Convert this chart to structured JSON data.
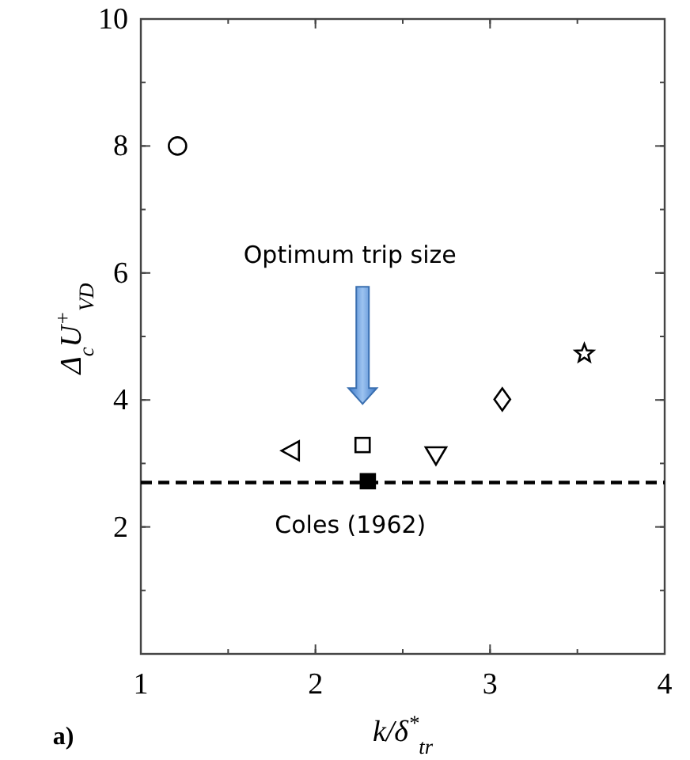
{
  "chart_data": {
    "type": "scatter",
    "xlabel": "k/δ$^{*}$$_{tr}$",
    "ylabel": "Δ$_{c}$U$^{+}$$_{VD}$",
    "series": [
      {
        "x": [
          1.21
        ],
        "values": [
          8.0
        ],
        "marker": "circle",
        "color": "#000000"
      },
      {
        "x": [
          1.86
        ],
        "values": [
          3.2
        ],
        "marker": "triangle-left",
        "color": "#000000"
      },
      {
        "x": [
          2.27
        ],
        "values": [
          3.29
        ],
        "marker": "square",
        "color": "#000000"
      },
      {
        "x": [
          2.69
        ],
        "values": [
          3.13
        ],
        "marker": "triangle-down",
        "color": "#000000"
      },
      {
        "x": [
          3.07
        ],
        "values": [
          4.01
        ],
        "marker": "diamond",
        "color": "#000000"
      },
      {
        "x": [
          3.54
        ],
        "values": [
          4.73
        ],
        "marker": "star",
        "color": "#000000"
      },
      {
        "x": [
          2.3
        ],
        "values": [
          2.72
        ],
        "marker": "square",
        "color": "#000000",
        "colors": [
          "#000000"
        ]
      }
    ],
    "xlim": [
      1,
      4
    ],
    "xticks": [
      1,
      2,
      3,
      4
    ],
    "ylim": [
      0,
      10
    ],
    "yticks": [
      2,
      4,
      6,
      8,
      10
    ],
    "ref_lines": [
      {
        "axis": "y",
        "value": 2.7,
        "label": "Coles (1962)",
        "line_style": "dashed",
        "color": "#000000"
      }
    ],
    "annotations": [
      "Optimum trip size",
      "a)"
    ],
    "grid": false
  }
}
